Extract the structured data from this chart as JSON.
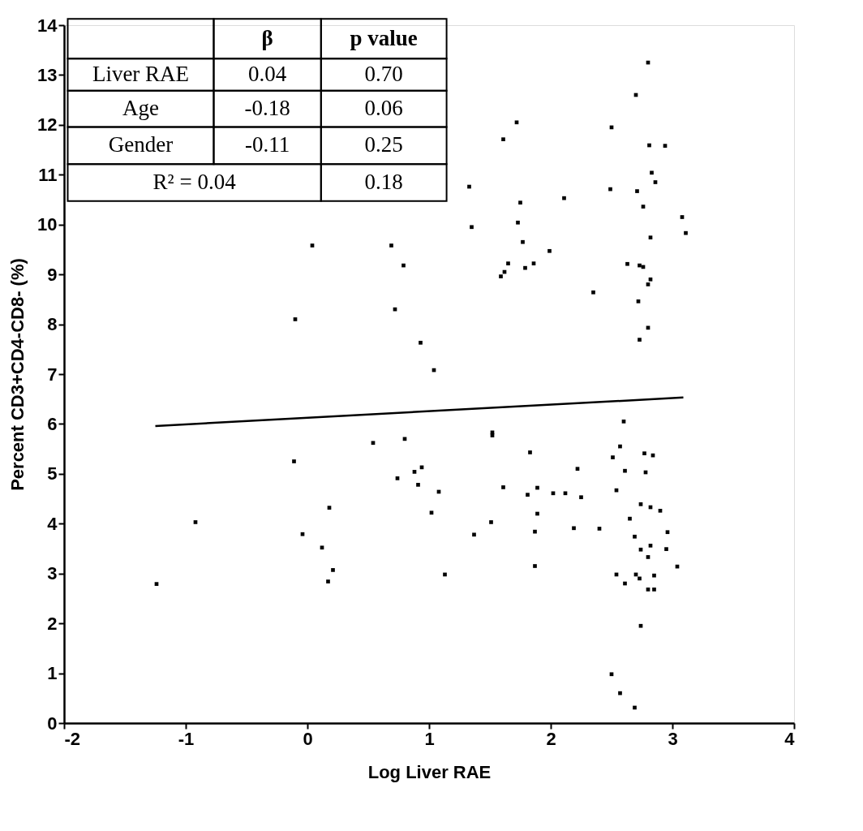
{
  "chart_data": {
    "type": "scatter",
    "xlabel": "Log Liver RAE",
    "ylabel": "Percent CD3+CD4-CD8- (%)",
    "xlim": [
      -2,
      4
    ],
    "xticks": [
      -2,
      -1,
      0,
      1,
      2,
      3,
      4
    ],
    "ylim": [
      0,
      14
    ],
    "yticks": [
      0,
      1,
      2,
      3,
      4,
      5,
      6,
      7,
      8,
      9,
      10,
      11,
      12,
      13,
      14
    ],
    "grid": false,
    "legend": false,
    "annotations": [
      "β",
      "p value",
      "Liver RAE",
      "0.04",
      "0.70",
      "Age",
      "-0.18",
      "0.06",
      "Gender",
      "-0.11",
      "0.25",
      "R² = 0.04",
      "0.18"
    ],
    "series": [
      {
        "type": "scatter",
        "marker": "square",
        "color": "#000000",
        "x": [
          0.04,
          0.69,
          0.79,
          0.72,
          -0.1,
          0.93,
          2.8,
          2.7,
          1.72,
          2.5,
          1.61,
          2.81,
          2.94,
          2.83,
          2.86,
          1.33,
          2.49,
          2.71,
          2.11,
          1.75,
          2.76,
          3.08,
          1.73,
          1.35,
          3.11,
          2.82,
          1.77,
          1.99,
          1.65,
          1.86,
          2.63,
          2.73,
          2.76,
          1.62,
          1.59,
          1.79,
          2.82,
          2.8,
          2.35,
          2.72,
          2.8,
          2.73,
          -1.24,
          -0.92,
          -0.11,
          0.18,
          -0.04,
          0.12,
          0.21,
          0.17,
          0.54,
          0.8,
          0.74,
          0.88,
          0.94,
          0.91,
          1.04,
          2.6,
          1.52,
          1.52,
          2.57,
          1.83,
          2.77,
          2.84,
          2.51,
          2.22,
          2.61,
          2.78,
          1.08,
          1.61,
          1.89,
          1.81,
          2.02,
          2.12,
          2.25,
          2.54,
          2.74,
          2.82,
          2.9,
          1.02,
          1.89,
          1.51,
          2.65,
          1.37,
          1.87,
          2.19,
          2.4,
          2.96,
          2.69,
          2.82,
          2.74,
          2.95,
          2.8,
          3.04,
          1.87,
          1.13,
          2.54,
          2.7,
          2.85,
          2.73,
          2.61,
          2.8,
          2.85,
          2.74,
          2.5,
          2.57,
          2.69
        ],
        "values": [
          9.58,
          9.58,
          9.18,
          8.3,
          8.1,
          7.63,
          13.25,
          12.6,
          12.05,
          11.95,
          11.71,
          11.59,
          11.58,
          11.04,
          10.85,
          10.76,
          10.71,
          10.67,
          10.53,
          10.44,
          10.36,
          10.15,
          10.04,
          9.95,
          9.83,
          9.74,
          9.65,
          9.47,
          9.22,
          9.22,
          9.21,
          9.18,
          9.15,
          9.05,
          8.96,
          9.13,
          8.9,
          8.8,
          8.64,
          8.46,
          7.93,
          7.69,
          2.79,
          4.03,
          5.25,
          4.32,
          3.79,
          3.52,
          3.07,
          2.84,
          5.62,
          5.7,
          4.91,
          5.04,
          5.13,
          4.78,
          7.08,
          6.05,
          5.83,
          5.77,
          5.55,
          5.43,
          5.41,
          5.37,
          5.33,
          5.1,
          5.06,
          5.03,
          4.64,
          4.73,
          4.72,
          4.58,
          4.61,
          4.61,
          4.53,
          4.67,
          4.39,
          4.33,
          4.26,
          4.22,
          4.2,
          4.03,
          4.1,
          3.78,
          3.84,
          3.91,
          3.9,
          3.83,
          3.74,
          3.56,
          3.48,
          3.49,
          3.33,
          3.14,
          3.15,
          2.98,
          2.98,
          2.98,
          2.96,
          2.9,
          2.8,
          2.68,
          2.68,
          1.95,
          0.98,
          0.6,
          0.31
        ]
      },
      {
        "type": "line",
        "line_style": "solid",
        "color": "#000000",
        "x": [
          -1.25,
          3.09
        ],
        "values": [
          5.96,
          6.53
        ]
      }
    ]
  }
}
